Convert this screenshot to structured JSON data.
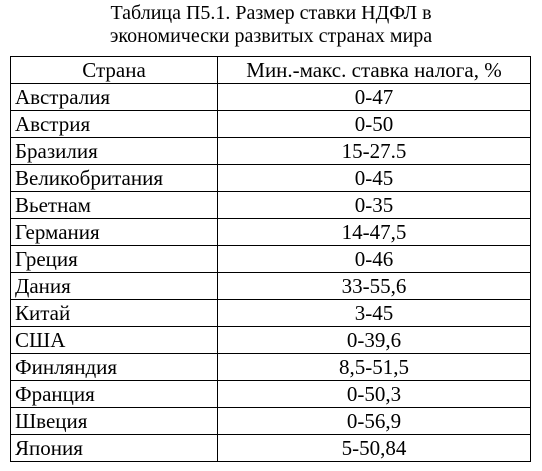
{
  "caption": {
    "line1": "Таблица П5.1. Размер ставки НДФЛ в",
    "line2": "экономически развитых странах мира"
  },
  "table": {
    "headers": [
      "Страна",
      "Мин.-макс. ставка налога, %"
    ],
    "rows": [
      {
        "country": "Австралия",
        "rate": "0-47"
      },
      {
        "country": "Австрия",
        "rate": "0-50"
      },
      {
        "country": "Бразилия",
        "rate": "15-27.5"
      },
      {
        "country": "Великобритания",
        "rate": "0-45"
      },
      {
        "country": "Вьетнам",
        "rate": "0-35"
      },
      {
        "country": "Германия",
        "rate": "14-47,5"
      },
      {
        "country": "Греция",
        "rate": "0-46"
      },
      {
        "country": "Дания",
        "rate": "33-55,6"
      },
      {
        "country": "Китай",
        "rate": "3-45"
      },
      {
        "country": "США",
        "rate": "0-39,6"
      },
      {
        "country": "Финляндия",
        "rate": "8,5-51,5"
      },
      {
        "country": "Франция",
        "rate": "0-50,3"
      },
      {
        "country": "Швеция",
        "rate": "0-56,9"
      },
      {
        "country": "Япония",
        "rate": "5-50,84"
      }
    ]
  }
}
